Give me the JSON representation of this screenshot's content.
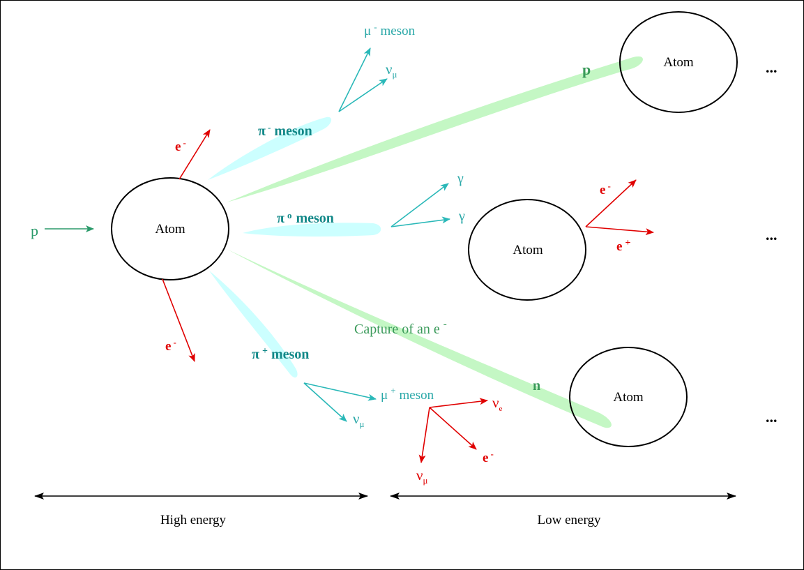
{
  "colors": {
    "black": "#000000",
    "red": "#e00000",
    "teal": "#2aa8a8",
    "teal_dark": "#118888",
    "green": "#3a9a5a",
    "cyan_fill": "#ccffff",
    "green_fill": "#c4f7c4"
  },
  "labels": {
    "incoming_p": "p",
    "atom_main": "Atom",
    "atom_top": "Atom",
    "atom_mid": "Atom",
    "atom_bot": "Atom",
    "e_minus_top": "e",
    "e_minus_top_sup": "-",
    "e_minus_bottom": "e",
    "e_minus_bottom_sup": "-",
    "pi_minus": "π",
    "pi_minus_sup": "-",
    "pi_minus_word": "meson",
    "pi_zero": "π",
    "pi_zero_sup": "o",
    "pi_zero_word": "meson",
    "pi_plus": "π",
    "pi_plus_sup": "+",
    "pi_plus_word": "meson",
    "mu_minus": "μ",
    "mu_minus_sup": "-",
    "mu_minus_word": "meson",
    "nu_mu_top": "ν",
    "nu_mu_top_sub": "μ",
    "gamma_1": "γ",
    "gamma_2": "γ",
    "e_minus_mid": "e",
    "e_minus_mid_sup": "-",
    "e_plus_mid": "e",
    "e_plus_mid_sup": "+",
    "p_outgoing": "p",
    "capture_text": "Capture of an e",
    "capture_sup": "-",
    "n_label": "n",
    "mu_plus": "μ",
    "mu_plus_sup": "+",
    "mu_plus_word": "meson",
    "nu_mu_pi": "ν",
    "nu_mu_pi_sub": "μ",
    "nu_e": "ν",
    "nu_e_sub": "e",
    "e_minus_decay": "e",
    "e_minus_decay_sup": "-",
    "nu_mu_decay": "ν",
    "nu_mu_decay_sub": "μ",
    "dots_top": "...",
    "dots_mid": "...",
    "dots_bot": "...",
    "high_energy": "High energy",
    "low_energy": "Low energy"
  }
}
